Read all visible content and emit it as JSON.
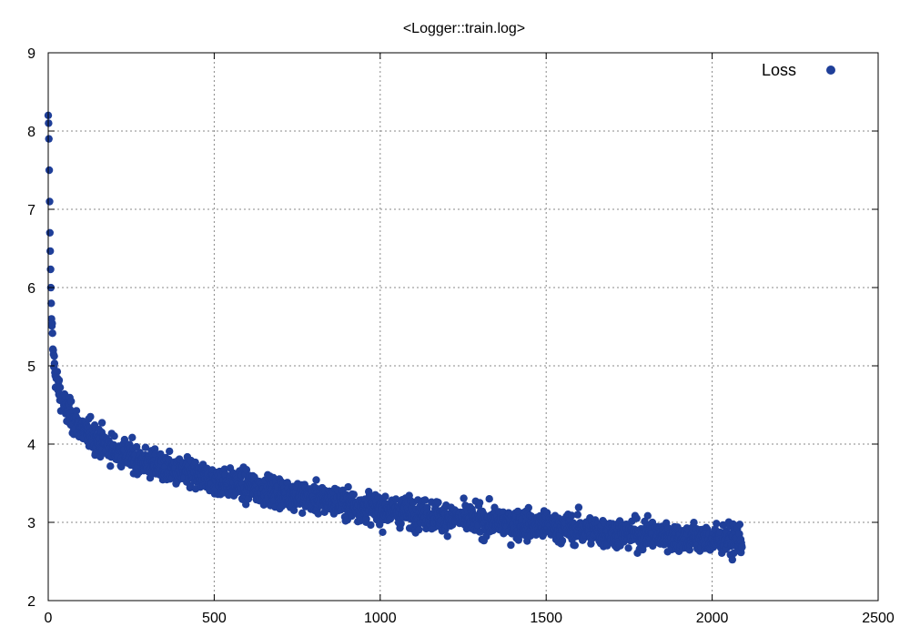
{
  "chart_data": {
    "type": "scatter",
    "title": "<Logger::train.log>",
    "xlabel": "",
    "ylabel": "",
    "xlim": [
      0,
      2500
    ],
    "ylim": [
      2,
      9
    ],
    "xticks": [
      0,
      500,
      1000,
      1500,
      2000,
      2500
    ],
    "yticks": [
      2,
      3,
      4,
      5,
      6,
      7,
      8,
      9
    ],
    "grid": true,
    "legend_position": "top-right",
    "series": [
      {
        "name": "Loss",
        "color": "#1f3f99",
        "trend_x": [
          0,
          1,
          2,
          3,
          5,
          8,
          10,
          15,
          20,
          30,
          40,
          50,
          60,
          80,
          100,
          150,
          200,
          300,
          400,
          500,
          700,
          1000,
          1300,
          1500,
          1700,
          2000,
          2090
        ],
        "trend_y": [
          8.2,
          8.1,
          7.9,
          7.5,
          6.7,
          6.0,
          5.6,
          5.15,
          4.95,
          4.72,
          4.58,
          4.47,
          4.4,
          4.28,
          4.2,
          4.05,
          3.92,
          3.75,
          3.63,
          3.54,
          3.38,
          3.17,
          3.02,
          2.95,
          2.87,
          2.78,
          2.76
        ],
        "spread": 0.13,
        "x_range": [
          0,
          2090
        ],
        "point_count": 2090
      }
    ]
  }
}
